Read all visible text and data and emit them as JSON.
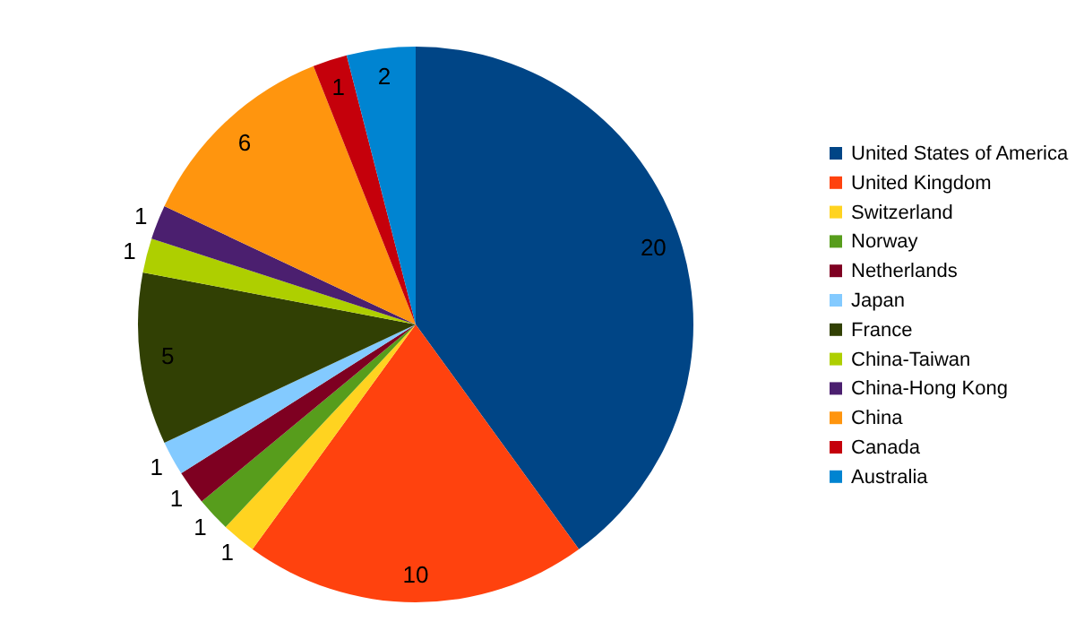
{
  "chart_data": {
    "type": "pie",
    "categories": [
      "United States of America",
      "United Kingdom",
      "Switzerland",
      "Norway",
      "Netherlands",
      "Japan",
      "France",
      "China-Taiwan",
      "China-Hong Kong",
      "China",
      "Canada",
      "Australia"
    ],
    "values": [
      20,
      10,
      1,
      1,
      1,
      1,
      5,
      1,
      1,
      6,
      1,
      2
    ],
    "colors": [
      "#004586",
      "#ff420e",
      "#ffd320",
      "#579d1c",
      "#7e0021",
      "#83caff",
      "#314004",
      "#aecf00",
      "#4b1f6f",
      "#ff950e",
      "#c5000b",
      "#0084d1"
    ],
    "data_labels": true,
    "legend": "right"
  }
}
